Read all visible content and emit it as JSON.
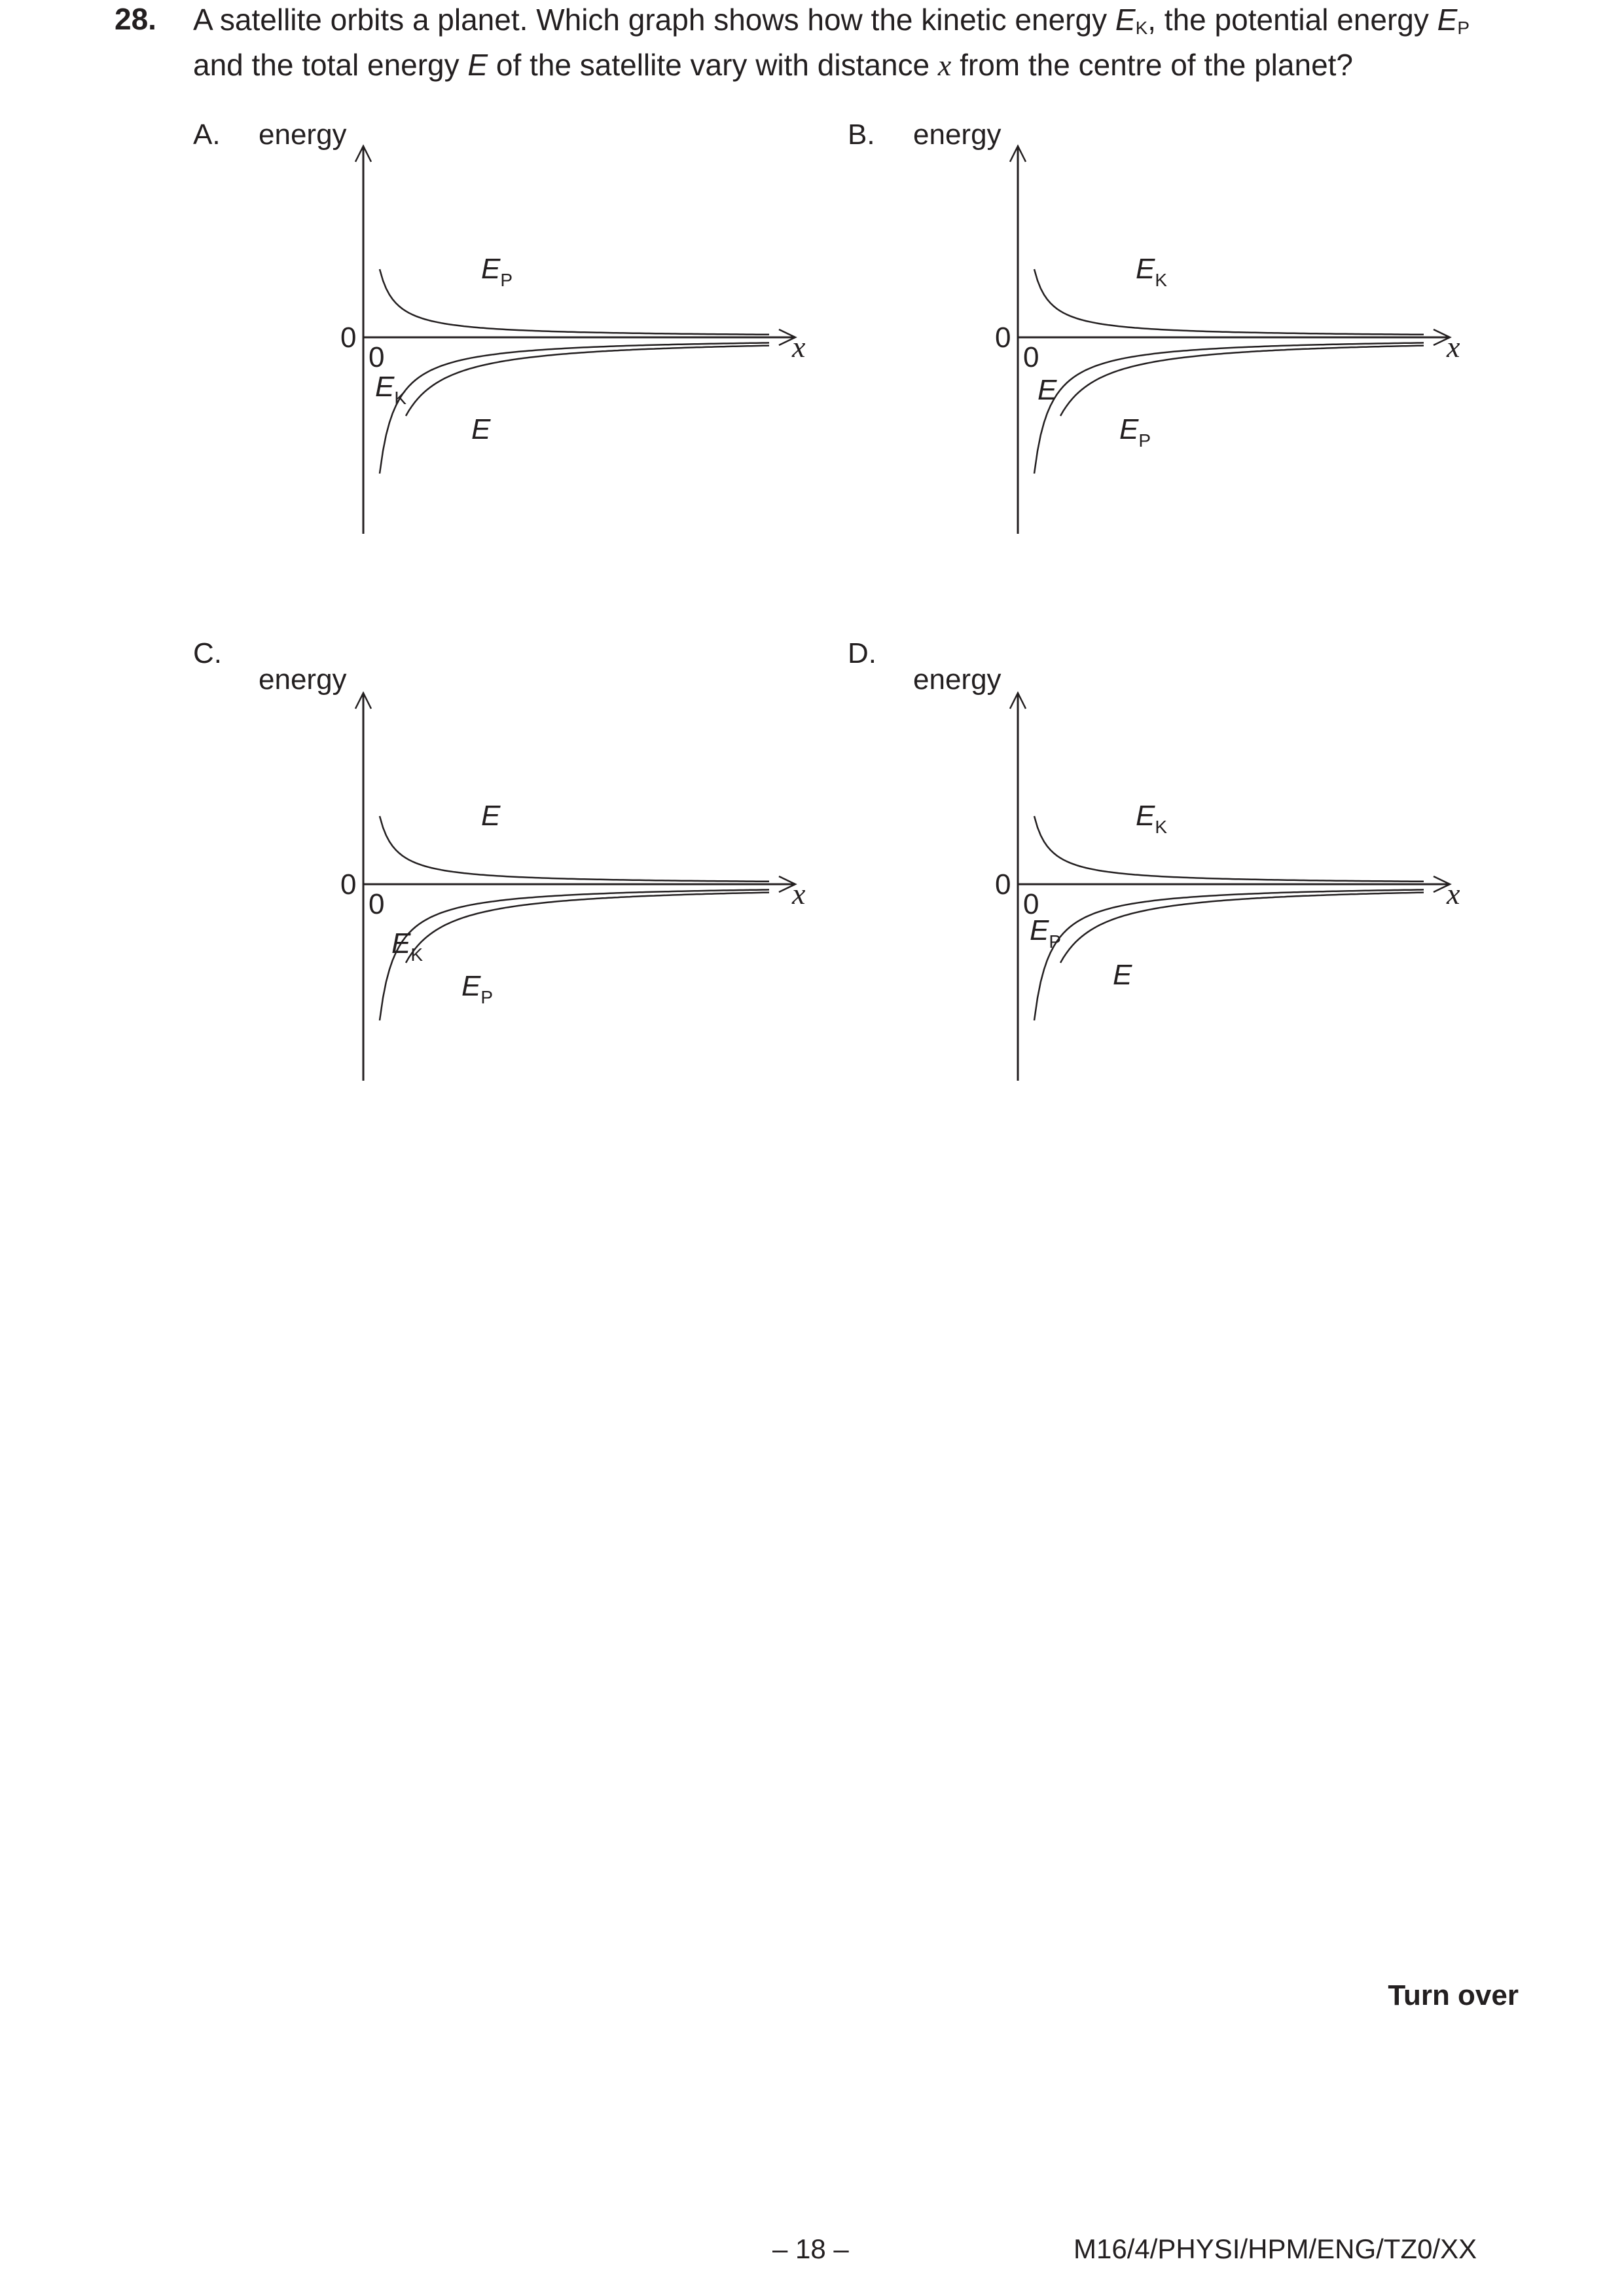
{
  "question": {
    "number": "28.",
    "line1": {
      "pre": "A satellite orbits a planet.  Which graph shows how the kinetic energy ",
      "ek_E": "E",
      "ek_sub": "K",
      "mid": ", the potential energy ",
      "ep_E": "E",
      "ep_sub": "P"
    },
    "line2": {
      "pre": "and the total energy ",
      "e": "E",
      "mid": " of the satellite vary with distance ",
      "x": "x",
      "post": " from the centre of the planet?"
    }
  },
  "options": [
    {
      "letter": "A.",
      "y_axis": "energy",
      "x_axis": "x",
      "origin_y": "0",
      "origin_x": "0",
      "upper_curve": {
        "E": "E",
        "sub": "P"
      },
      "middle_curve": {
        "E": "E",
        "sub": "K"
      },
      "lower_curve": {
        "E": "E",
        "sub": ""
      }
    },
    {
      "letter": "B.",
      "y_axis": "energy",
      "x_axis": "x",
      "origin_y": "0",
      "origin_x": "0",
      "upper_curve": {
        "E": "E",
        "sub": "K"
      },
      "middle_curve": {
        "E": "E",
        "sub": ""
      },
      "lower_curve": {
        "E": "E",
        "sub": "P"
      }
    },
    {
      "letter": "C.",
      "y_axis": "energy",
      "x_axis": "x",
      "origin_y": "0",
      "origin_x": "0",
      "upper_curve": {
        "E": "E",
        "sub": ""
      },
      "middle_curve": {
        "E": "E",
        "sub": "K"
      },
      "lower_curve": {
        "E": "E",
        "sub": "P"
      }
    },
    {
      "letter": "D.",
      "y_axis": "energy",
      "x_axis": "x",
      "origin_y": "0",
      "origin_x": "0",
      "upper_curve": {
        "E": "E",
        "sub": "K"
      },
      "middle_curve": {
        "E": "E",
        "sub": "P"
      },
      "lower_curve": {
        "E": "E",
        "sub": ""
      }
    }
  ],
  "footer": {
    "turn_over": "Turn over",
    "page_number": "– 18 –",
    "paper_code": "M16/4/PHYSI/HPM/ENG/TZ0/XX"
  }
}
